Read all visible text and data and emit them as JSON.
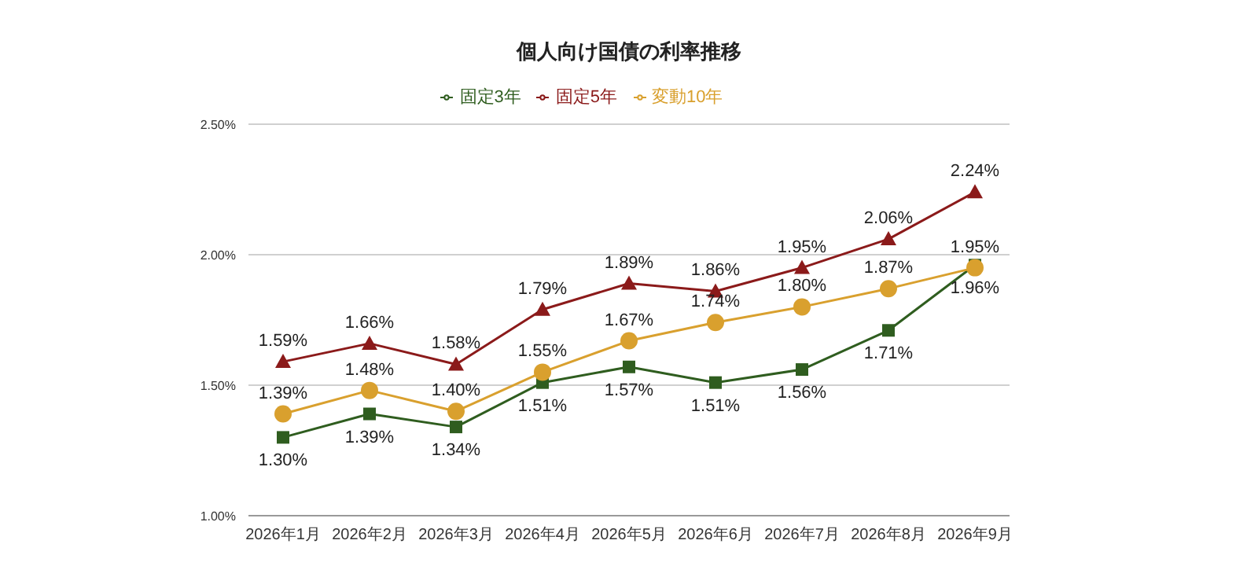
{
  "chart_data": {
    "type": "line",
    "title": "個人向け国債の利率推移",
    "categories": [
      "2026年1月",
      "2026年2月",
      "2026年3月",
      "2026年4月",
      "2026年5月",
      "2026年6月",
      "2026年7月",
      "2026年8月",
      "2026年9月"
    ],
    "series": [
      {
        "name": "固定3年",
        "color": "#2f5d1f",
        "marker": "square",
        "values": [
          1.3,
          1.39,
          1.34,
          1.51,
          1.57,
          1.51,
          1.56,
          1.71,
          1.96
        ],
        "value_labels": [
          "1.30%",
          "1.39%",
          "1.34%",
          "1.51%",
          "1.57%",
          "1.51%",
          "1.56%",
          "1.71%",
          "1.96%"
        ]
      },
      {
        "name": "固定5年",
        "color": "#8b1a1a",
        "marker": "triangle",
        "values": [
          1.59,
          1.66,
          1.58,
          1.79,
          1.89,
          1.86,
          1.95,
          2.06,
          2.24
        ],
        "value_labels": [
          "1.59%",
          "1.66%",
          "1.58%",
          "1.79%",
          "1.89%",
          "1.86%",
          "1.95%",
          "2.06%",
          "2.24%"
        ]
      },
      {
        "name": "変動10年",
        "color": "#d9a02e",
        "marker": "circle",
        "values": [
          1.39,
          1.48,
          1.4,
          1.55,
          1.67,
          1.74,
          1.8,
          1.87,
          1.95
        ],
        "value_labels": [
          "1.39%",
          "1.48%",
          "1.40%",
          "1.55%",
          "1.67%",
          "1.74%",
          "1.80%",
          "1.87%",
          "1.95%"
        ]
      }
    ],
    "ylim": [
      1.0,
      2.5
    ],
    "yticks": [
      {
        "value": 1.0,
        "label": "1.00%"
      },
      {
        "value": 1.5,
        "label": "1.50%"
      },
      {
        "value": 2.0,
        "label": "2.00%"
      },
      {
        "value": 2.5,
        "label": "2.50%"
      }
    ],
    "grid": "y",
    "legend": "top"
  }
}
